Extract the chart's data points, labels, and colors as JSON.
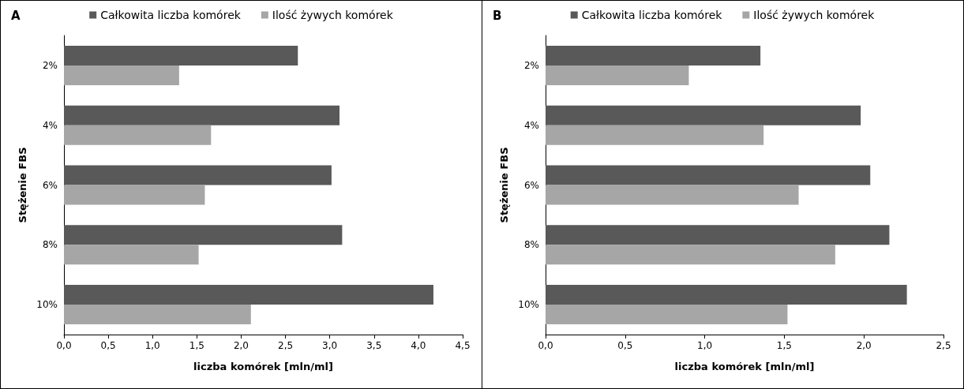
{
  "chart_data": [
    {
      "type": "bar",
      "orientation": "horizontal",
      "title": "A",
      "xlabel": "liczba komórek [mln/ml]",
      "ylabel": "Stężenie FBS",
      "categories": [
        "2%",
        "4%",
        "6%",
        "8%",
        "10%"
      ],
      "series": [
        {
          "name": "Całkowita liczba komórek",
          "color": "#595959",
          "values": [
            2.64,
            3.11,
            3.02,
            3.14,
            4.17
          ]
        },
        {
          "name": "Ilość żywych komórek",
          "color": "#a6a6a6",
          "values": [
            1.3,
            1.66,
            1.59,
            1.52,
            2.11
          ]
        }
      ],
      "xlim": [
        0,
        4.5
      ],
      "xticks": [
        {
          "value": 0,
          "label": "0,0"
        },
        {
          "value": 0.5,
          "label": "0,5"
        },
        {
          "value": 1,
          "label": "1,0"
        },
        {
          "value": 1.5,
          "label": "1,5"
        },
        {
          "value": 2,
          "label": "2,0"
        },
        {
          "value": 2.5,
          "label": "2,5"
        },
        {
          "value": 3,
          "label": "3,0"
        },
        {
          "value": 3.5,
          "label": "3,5"
        },
        {
          "value": 4,
          "label": "4,0"
        },
        {
          "value": 4.5,
          "label": "4,5"
        }
      ],
      "grid": false,
      "legend": "top"
    },
    {
      "type": "bar",
      "orientation": "horizontal",
      "title": "B",
      "xlabel": "liczba komórek [mln/ml]",
      "ylabel": "Stężenie FBS",
      "categories": [
        "2%",
        "4%",
        "6%",
        "8%",
        "10%"
      ],
      "series": [
        {
          "name": "Całkowita liczba komórek",
          "color": "#595959",
          "values": [
            1.35,
            1.98,
            2.04,
            2.16,
            2.27
          ]
        },
        {
          "name": "Ilość żywych komórek",
          "color": "#a6a6a6",
          "values": [
            0.9,
            1.37,
            1.59,
            1.82,
            1.52
          ]
        }
      ],
      "xlim": [
        0,
        2.5
      ],
      "xticks": [
        {
          "value": 0,
          "label": "0,0"
        },
        {
          "value": 0.5,
          "label": "0,5"
        },
        {
          "value": 1,
          "label": "1,0"
        },
        {
          "value": 1.5,
          "label": "1,5"
        },
        {
          "value": 2,
          "label": "2,0"
        },
        {
          "value": 2.5,
          "label": "2,5"
        }
      ],
      "grid": false,
      "legend": "top"
    }
  ]
}
